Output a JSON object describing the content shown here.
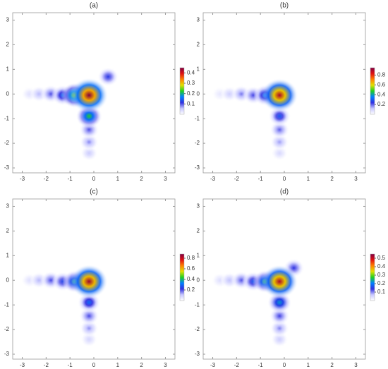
{
  "chart_data": [
    {
      "type": "heatmap",
      "title": "(a)",
      "xlim": [
        -3.4,
        3.4
      ],
      "ylim": [
        -3.2,
        3.3
      ],
      "xticks": [
        -3,
        -2,
        -1,
        0,
        1,
        2,
        3
      ],
      "yticks": [
        -3,
        -2,
        -1,
        0,
        1,
        2,
        3
      ],
      "clim": [
        0,
        0.45
      ],
      "cticks": [
        0.1,
        0.2,
        0.3,
        0.4
      ],
      "colormap": [
        "#ffffff",
        "#c8c8ff",
        "#3030e0",
        "#0080ff",
        "#20d020",
        "#e0e000",
        "#ff8000",
        "#e01010",
        "#800040"
      ],
      "spots": [
        {
          "x": -2.7,
          "y": 0,
          "value": 0.03
        },
        {
          "x": -2.3,
          "y": 0,
          "value": 0.06
        },
        {
          "x": -0.2,
          "y": -2.4,
          "value": 0.05
        },
        {
          "x": -0.2,
          "y": -1.95,
          "value": 0.08
        },
        {
          "x": -1.8,
          "y": 0,
          "value": 0.1
        },
        {
          "x": -0.2,
          "y": -1.45,
          "value": 0.1
        },
        {
          "x": 0.6,
          "y": 0.7,
          "value": 0.12
        },
        {
          "x": -1.3,
          "y": -0.05,
          "value": 0.15
        },
        {
          "x": -0.2,
          "y": -0.9,
          "value": 0.22
        },
        {
          "x": -0.8,
          "y": -0.05,
          "value": 0.25
        },
        {
          "x": -0.2,
          "y": -0.05,
          "value": 0.45
        }
      ]
    },
    {
      "type": "heatmap",
      "title": "(b)",
      "xlim": [
        -3.4,
        3.4
      ],
      "ylim": [
        -3.2,
        3.3
      ],
      "xticks": [
        -3,
        -2,
        -1,
        0,
        1,
        2,
        3
      ],
      "yticks": [
        -3,
        -2,
        -1,
        0,
        1,
        2,
        3
      ],
      "clim": [
        0,
        0.95
      ],
      "cticks": [
        0.2,
        0.4,
        0.6,
        0.8
      ],
      "colormap": [
        "#ffffff",
        "#c8c8ff",
        "#3030e0",
        "#0080ff",
        "#20d020",
        "#e0e000",
        "#ff8000",
        "#e01010",
        "#800040"
      ],
      "spots": [
        {
          "x": -2.7,
          "y": 0,
          "value": 0.05
        },
        {
          "x": -2.3,
          "y": 0,
          "value": 0.1
        },
        {
          "x": -0.2,
          "y": -2.4,
          "value": 0.08
        },
        {
          "x": -0.2,
          "y": -1.95,
          "value": 0.15
        },
        {
          "x": -1.8,
          "y": 0,
          "value": 0.18
        },
        {
          "x": -0.2,
          "y": -1.45,
          "value": 0.2
        },
        {
          "x": -1.3,
          "y": -0.05,
          "value": 0.22
        },
        {
          "x": -0.2,
          "y": -0.9,
          "value": 0.3
        },
        {
          "x": -0.8,
          "y": -0.05,
          "value": 0.35
        },
        {
          "x": -0.2,
          "y": -0.05,
          "value": 0.9
        }
      ]
    },
    {
      "type": "heatmap",
      "title": "(c)",
      "xlim": [
        -3.4,
        3.4
      ],
      "ylim": [
        -3.2,
        3.3
      ],
      "xticks": [
        -3,
        -2,
        -1,
        0,
        1,
        2,
        3
      ],
      "yticks": [
        -3,
        -2,
        -1,
        0,
        1,
        2,
        3
      ],
      "clim": [
        0,
        0.88
      ],
      "cticks": [
        0.2,
        0.4,
        0.6,
        0.8
      ],
      "colormap": [
        "#ffffff",
        "#c8c8ff",
        "#3030e0",
        "#0080ff",
        "#20d020",
        "#e0e000",
        "#ff8000",
        "#e01010",
        "#800040"
      ],
      "spots": [
        {
          "x": -2.7,
          "y": 0,
          "value": 0.06
        },
        {
          "x": -2.3,
          "y": 0,
          "value": 0.12
        },
        {
          "x": -0.2,
          "y": -2.4,
          "value": 0.08
        },
        {
          "x": -0.2,
          "y": -1.95,
          "value": 0.15
        },
        {
          "x": -1.8,
          "y": 0,
          "value": 0.2
        },
        {
          "x": -0.2,
          "y": -1.45,
          "value": 0.2
        },
        {
          "x": -1.3,
          "y": -0.05,
          "value": 0.25
        },
        {
          "x": -0.2,
          "y": -0.9,
          "value": 0.3
        },
        {
          "x": -0.8,
          "y": -0.05,
          "value": 0.38
        },
        {
          "x": -0.2,
          "y": -0.05,
          "value": 0.85
        }
      ]
    },
    {
      "type": "heatmap",
      "title": "(d)",
      "xlim": [
        -3.4,
        3.4
      ],
      "ylim": [
        -3.2,
        3.3
      ],
      "xticks": [
        -3,
        -2,
        -1,
        0,
        1,
        2,
        3
      ],
      "yticks": [
        -3,
        -2,
        -1,
        0,
        1,
        2,
        3
      ],
      "clim": [
        0,
        0.55
      ],
      "cticks": [
        0.1,
        0.2,
        0.3,
        0.4,
        0.5
      ],
      "colormap": [
        "#ffffff",
        "#c8c8ff",
        "#3030e0",
        "#0080ff",
        "#20d020",
        "#e0e000",
        "#ff8000",
        "#e01010",
        "#800040"
      ],
      "spots": [
        {
          "x": -2.7,
          "y": 0,
          "value": 0.04
        },
        {
          "x": -2.3,
          "y": 0,
          "value": 0.07
        },
        {
          "x": -0.2,
          "y": -2.4,
          "value": 0.06
        },
        {
          "x": -0.2,
          "y": -1.95,
          "value": 0.1
        },
        {
          "x": -1.8,
          "y": 0,
          "value": 0.12
        },
        {
          "x": -0.2,
          "y": -1.45,
          "value": 0.13
        },
        {
          "x": 0.4,
          "y": 0.5,
          "value": 0.14
        },
        {
          "x": -1.3,
          "y": -0.05,
          "value": 0.17
        },
        {
          "x": -0.2,
          "y": -0.9,
          "value": 0.22
        },
        {
          "x": -0.8,
          "y": -0.05,
          "value": 0.25
        },
        {
          "x": -0.2,
          "y": -0.05,
          "value": 0.52
        }
      ]
    }
  ]
}
